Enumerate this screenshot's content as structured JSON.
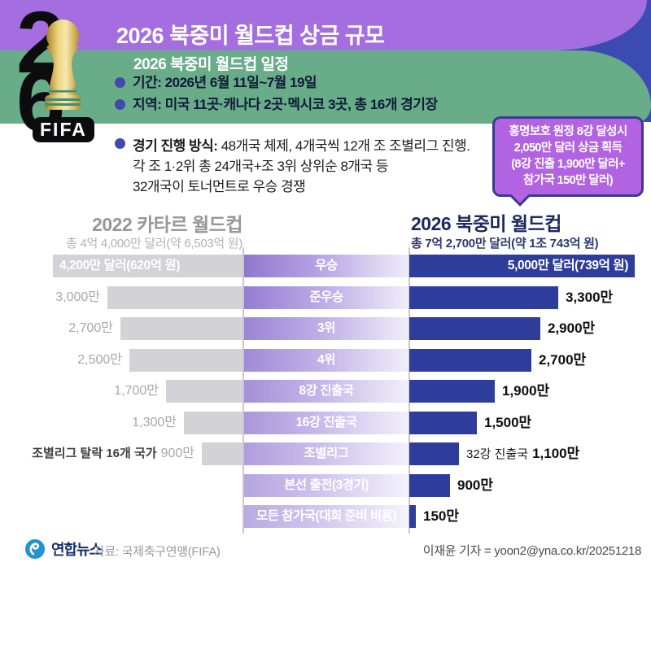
{
  "header": {
    "title": "2026 북중미 월드컵 상금 규모",
    "logo": {
      "digit_top": "2",
      "digit_bottom": "6",
      "fifa_label": "FIFA"
    }
  },
  "schedule": {
    "title": "2026 북중미 월드컵 일정",
    "items": [
      "기간: 2026년 6월 11일~7월 19일",
      "지역: 미국 11곳·캐나다 2곳·멕시코 3곳, 총 16개 경기장"
    ],
    "format_label": "경기 진행 방식:",
    "format_lines": [
      "48개국 체제, 4개국씩 12개 조 조별리그 진행.",
      "각 조 1·2위 총 24개국+조 3위 상위순 8개국 등",
      "32개국이 토너먼트로 우승 경쟁"
    ]
  },
  "callout": {
    "lines": [
      "홍명보호 원정 8강 달성시",
      "2,050만 달러 상금 획득",
      "(8강 진출 1,900만 달러+",
      "참가국 150만 달러)"
    ]
  },
  "chart_data": {
    "type": "bar",
    "orientation": "horizontal-mirrored",
    "unit": "만 달러",
    "left_title": "2022 카타르 월드컵",
    "left_subtitle": "총 4억 4,000만 달러(약 6,503억 원)",
    "right_title": "2026 북중미 월드컵",
    "right_subtitle": "총 7억 2,700만 달러(약 1조 743억 원)",
    "categories": [
      "우승",
      "준우승",
      "3위",
      "4위",
      "8강 진출국",
      "16강 진출국",
      "조별리그",
      "본선 출전(3경기)",
      "모든 참가국(대회 준비 비용)"
    ],
    "series": [
      {
        "name": "2022 카타르 월드컵",
        "values": [
          4200,
          3000,
          2700,
          2500,
          1700,
          1300,
          900,
          null,
          null
        ],
        "labels": [
          "4,200만 달러(620억 원)",
          "3,000만",
          "2,700만",
          "2,500만",
          "1,700만",
          "1,300만",
          "900만",
          "",
          ""
        ],
        "prefixes": [
          "",
          "",
          "",
          "",
          "",
          "",
          "조별리그 탈락 16개 국가",
          "",
          ""
        ]
      },
      {
        "name": "2026 북중미 월드컵",
        "values": [
          5000,
          3300,
          2900,
          2700,
          1900,
          1500,
          1100,
          900,
          150
        ],
        "labels": [
          "5,000만 달러(739억 원)",
          "3,300만",
          "2,900만",
          "2,700만",
          "1,900만",
          "1,500만",
          "1,100만",
          "900만",
          "150만"
        ],
        "prefixes": [
          "",
          "",
          "",
          "",
          "",
          "",
          "32강 진출국",
          "",
          ""
        ]
      }
    ]
  },
  "footer": {
    "logo_text": "연합뉴스",
    "source": "자료: 국제축구연맹(FIFA)",
    "credit": "이재윤 기자 = yoon2@yna.co.kr/20251218"
  },
  "colors": {
    "header_purple": "#a56ee0",
    "band_green": "#68ac88",
    "corner_blue": "#3c4bb2",
    "callout_purple": "#b263e2",
    "callout_border": "#3d3a90",
    "bar_2026_navy": "#2e3d9c",
    "bar_2022_gray": "#d2d2d7",
    "label_gradient_purple": "#9077cf",
    "title_2026_navy": "#1b2a5c",
    "title_2022_gray": "#97969c",
    "bullet_dot": "#4049ae",
    "yonhap_blue": "#2193d1"
  }
}
